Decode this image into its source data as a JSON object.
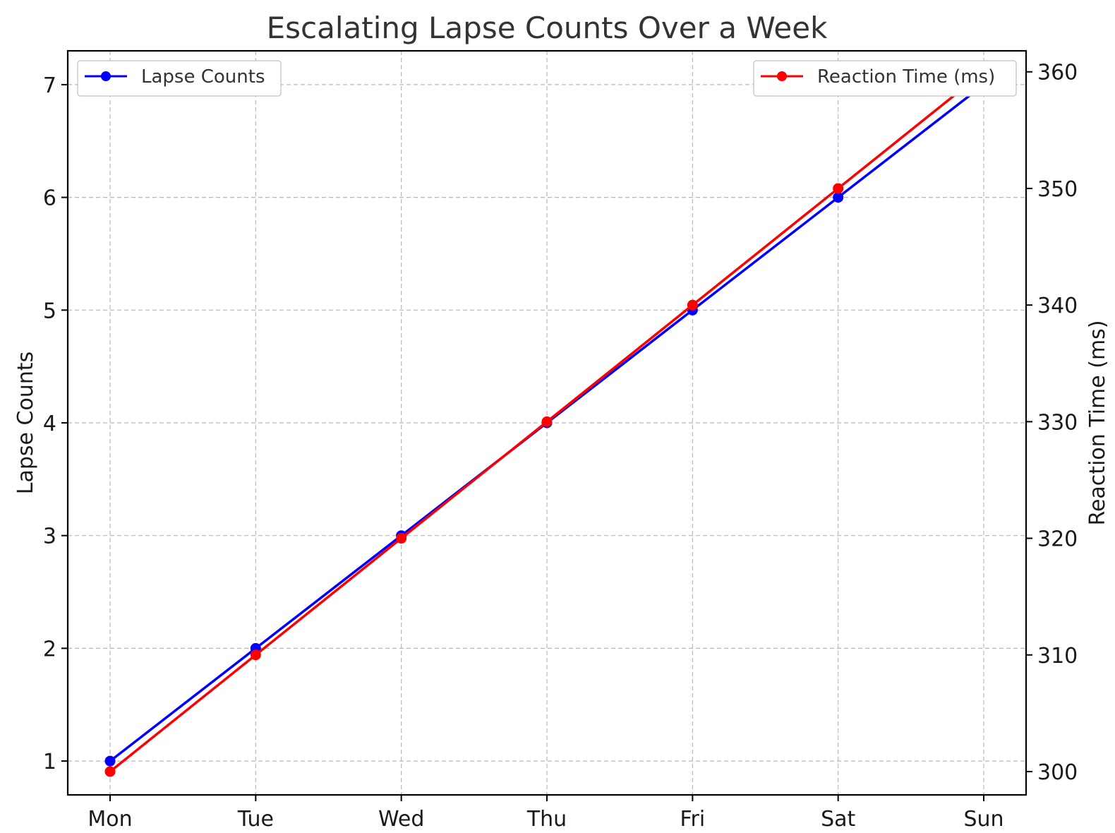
{
  "chart_data": {
    "type": "line",
    "title": "Escalating Lapse Counts Over a Week",
    "categories": [
      "Mon",
      "Tue",
      "Wed",
      "Thu",
      "Fri",
      "Sat",
      "Sun"
    ],
    "y_left": {
      "label": "Lapse Counts",
      "ticks": [
        1,
        2,
        3,
        4,
        5,
        6,
        7
      ],
      "ylim": [
        0.7,
        7.3
      ]
    },
    "y_right": {
      "label": "Reaction Time (ms)",
      "ticks": [
        300,
        310,
        320,
        330,
        340,
        350,
        360
      ],
      "ylim": [
        298,
        361.8
      ]
    },
    "series": [
      {
        "name": "Lapse Counts",
        "axis": "left",
        "color": "#0000ff",
        "marker": "circle",
        "values": [
          1,
          2,
          3,
          4,
          5,
          6,
          7
        ]
      },
      {
        "name": "Reaction Time (ms)",
        "axis": "right",
        "color": "#ff0000",
        "marker": "circle",
        "values": [
          300,
          310,
          320,
          330,
          340,
          350,
          360
        ]
      }
    ],
    "grid": true,
    "legends": [
      {
        "series": "Lapse Counts",
        "placement": "upper-left"
      },
      {
        "series": "Reaction Time (ms)",
        "placement": "upper-right"
      }
    ]
  }
}
